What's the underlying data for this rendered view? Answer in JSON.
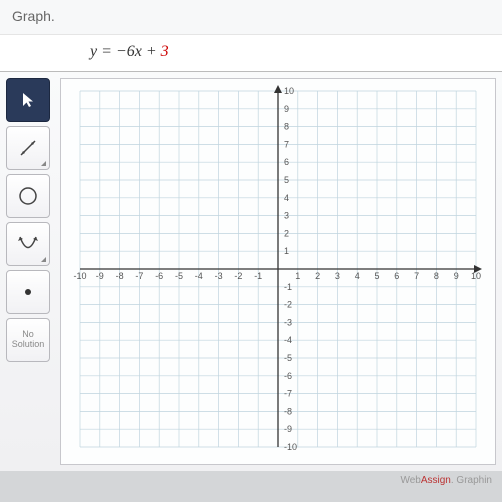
{
  "instruction": "Graph.",
  "equation": {
    "lhs": "y",
    "eq": " = ",
    "sign": "−",
    "slope": "6x",
    "plus": " + ",
    "intercept": "3"
  },
  "toolbar": {
    "pointer": "pointer-tool",
    "line": "line-tool",
    "circle": "circle-tool",
    "parabola": "parabola-tool",
    "point": "point-tool",
    "nosol_line1": "No",
    "nosol_line2": "Solution"
  },
  "graph": {
    "xmin": -10,
    "xmax": 10,
    "ymin": -10,
    "ymax": 10,
    "tick_step": 1,
    "grid_color": "#bfd4de",
    "axis_color": "#333",
    "bg": "#fdfefe",
    "label_color": "#555",
    "label_fontsize": 9,
    "xticks": [
      -10,
      -9,
      -8,
      -7,
      -6,
      -5,
      -4,
      -3,
      -2,
      -1,
      1,
      2,
      3,
      4,
      5,
      6,
      7,
      8,
      9,
      10
    ],
    "yticks": [
      -10,
      -9,
      -8,
      -7,
      -6,
      -5,
      -4,
      -3,
      -2,
      -1,
      1,
      2,
      3,
      4,
      5,
      6,
      7,
      8,
      9,
      10
    ]
  },
  "footer": {
    "left": "",
    "brand1": "Web",
    "brand2": "Assign",
    "brand3": ". Graphin"
  }
}
